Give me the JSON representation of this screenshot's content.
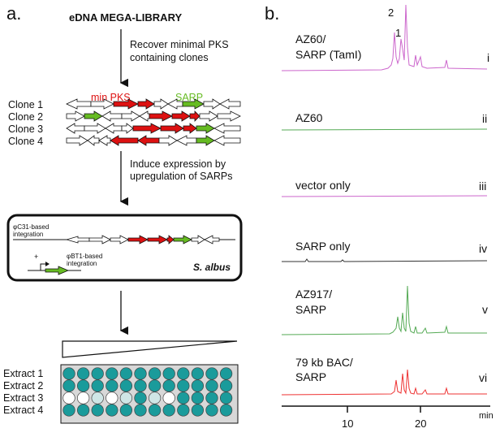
{
  "panel_a": {
    "label": "a.",
    "library_title": "eDNA MEGA-LIBRARY",
    "step1": [
      "Recover minimal PKS",
      "containing clones"
    ],
    "gene_labels": {
      "min_pks": "min PKS",
      "sarp": "SARP"
    },
    "clones": [
      "Clone 1",
      "Clone 2",
      "Clone 3",
      "Clone 4"
    ],
    "step2": [
      "Induce expression by",
      "upregulation of SARPs"
    ],
    "host": {
      "phiC31": [
        "φC31-based",
        "integration"
      ],
      "phiBT1": [
        "φBT1-based",
        "integration"
      ],
      "promoter_sign": "+",
      "strain": "S. albus"
    },
    "extracts": [
      "Extract 1",
      "Extract 2",
      "Extract 3",
      "Extract 4"
    ],
    "plate_rows": [
      [
        "filled",
        "filled",
        "filled",
        "filled",
        "filled",
        "filled",
        "filled",
        "filled",
        "filled",
        "filled",
        "filled",
        "filled"
      ],
      [
        "filled",
        "filled",
        "filled",
        "filled",
        "filled",
        "filled",
        "filled",
        "filled",
        "filled",
        "filled",
        "filled",
        "filled"
      ],
      [
        "empty",
        "empty",
        "light",
        "empty",
        "light",
        "filled",
        "light",
        "empty",
        "filled",
        "filled",
        "filled",
        "filled"
      ],
      [
        "filled",
        "filled",
        "filled",
        "filled",
        "filled",
        "filled",
        "filled",
        "filled",
        "filled",
        "filled",
        "filled",
        "filled"
      ]
    ],
    "colors": {
      "pks": "#dd1111",
      "sarp": "#66bb22",
      "well": "#1a9b9b",
      "well_light": "#cfe6e6"
    }
  },
  "panel_b": {
    "label": "b.",
    "traces": [
      {
        "label": [
          "AZ60/",
          "SARP (TamI)"
        ],
        "numeral": "i",
        "color": "#cc66cc",
        "peak_labels": [
          "2",
          "1"
        ]
      },
      {
        "label": [
          "AZ60"
        ],
        "numeral": "ii",
        "color": "#55aa55"
      },
      {
        "label": [
          "vector only"
        ],
        "numeral": "iii",
        "color": "#cc66cc"
      },
      {
        "label": [
          "SARP only"
        ],
        "numeral": "iv",
        "color": "#333333"
      },
      {
        "label": [
          "AZ917/",
          "SARP"
        ],
        "numeral": "v",
        "color": "#55aa55"
      },
      {
        "label": [
          "79 kb BAC/",
          "SARP"
        ],
        "numeral": "vi",
        "color": "#ee3333"
      }
    ],
    "axis": {
      "ticks": [
        "10",
        "20"
      ],
      "unit": "min"
    }
  }
}
